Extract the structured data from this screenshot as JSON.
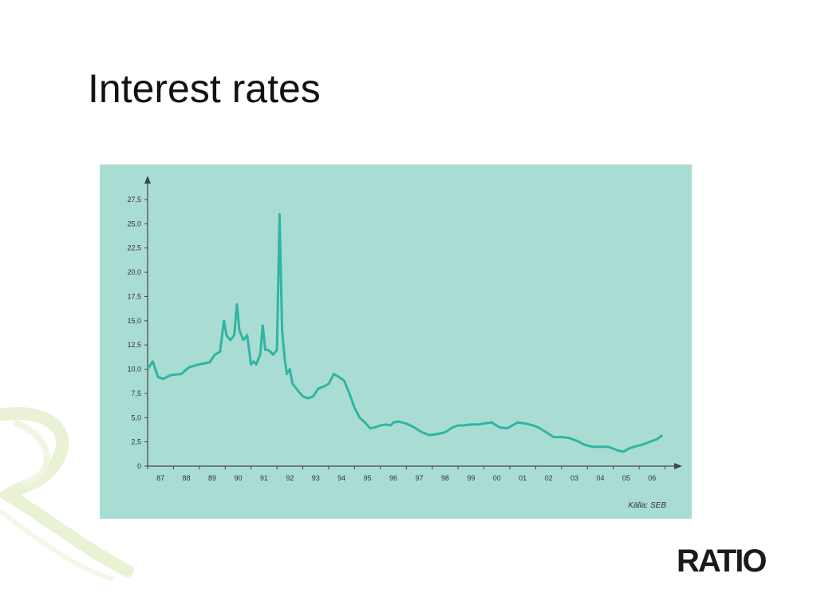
{
  "slide": {
    "title": "Interest rates",
    "logo_text": "RATIO",
    "decoration_icon": "swirl-r-icon"
  },
  "colors": {
    "chart_background": "#a9ddd4",
    "line": "#2fb5a3",
    "axis": "#444444",
    "decoration": "#eaf2d6"
  },
  "chart_data": {
    "type": "line",
    "title": "",
    "xlabel": "",
    "ylabel": "",
    "source": "Källa: SEB",
    "y_ticks": [
      "0",
      "2,5",
      "5,0",
      "7,5",
      "10,0",
      "12,5",
      "15,0",
      "17,5",
      "20,0",
      "22,5",
      "25,0",
      "27,5"
    ],
    "y_tick_values": [
      0,
      2.5,
      5,
      7.5,
      10,
      12.5,
      15,
      17.5,
      20,
      22.5,
      25,
      27.5
    ],
    "x_ticks": [
      "87",
      "88",
      "89",
      "90",
      "91",
      "92",
      "93",
      "94",
      "95",
      "96",
      "97",
      "98",
      "99",
      "00",
      "01",
      "02",
      "03",
      "04",
      "05",
      "06"
    ],
    "ylim": [
      0,
      27.5
    ],
    "xlim": [
      1987.0,
      2007.2
    ],
    "grid": false,
    "legend": "none",
    "series": [
      {
        "x": [
          1987.0,
          1987.2,
          1987.4,
          1987.6,
          1987.9,
          1988.3,
          1988.6,
          1989.0,
          1989.4,
          1989.6,
          1989.8,
          1989.95,
          1990.05,
          1990.2,
          1990.35,
          1990.45,
          1990.55,
          1990.7,
          1990.85,
          1991.0,
          1991.1,
          1991.2,
          1991.35,
          1991.45,
          1991.55,
          1991.65,
          1991.75,
          1991.85,
          1992.0,
          1992.1,
          1992.2,
          1992.3,
          1992.38,
          1992.5,
          1992.6,
          1992.75,
          1992.9,
          1993.0,
          1993.2,
          1993.4,
          1993.6,
          1993.8,
          1994.0,
          1994.2,
          1994.4,
          1994.6,
          1994.8,
          1995.0,
          1995.2,
          1995.4,
          1995.6,
          1995.8,
          1996.0,
          1996.2,
          1996.4,
          1996.5,
          1996.7,
          1997.0,
          1997.3,
          1997.6,
          1997.9,
          1998.2,
          1998.5,
          1998.8,
          1999.0,
          1999.2,
          1999.5,
          1999.8,
          2000.0,
          2000.3,
          2000.6,
          2000.9,
          2001.1,
          2001.3,
          2001.6,
          2001.9,
          2002.1,
          2002.4,
          2002.7,
          2003.0,
          2003.3,
          2003.6,
          2003.9,
          2004.2,
          2004.5,
          2004.8,
          2005.0,
          2005.2,
          2005.4,
          2005.6,
          2005.8,
          2006.1,
          2006.4,
          2006.7,
          2006.9
        ],
        "y": [
          10.0,
          10.8,
          9.2,
          9.0,
          9.4,
          9.5,
          10.2,
          10.5,
          10.7,
          11.5,
          11.8,
          15.0,
          13.5,
          13.0,
          13.5,
          16.7,
          14.0,
          13.0,
          13.5,
          10.5,
          10.8,
          10.5,
          11.5,
          14.5,
          12.0,
          12.0,
          11.8,
          11.5,
          12.0,
          26.0,
          14.0,
          11.0,
          9.5,
          10.0,
          8.5,
          8.0,
          7.5,
          7.2,
          7.0,
          7.2,
          8.0,
          8.2,
          8.5,
          9.5,
          9.2,
          8.8,
          7.5,
          6.0,
          5.0,
          4.5,
          3.9,
          4.0,
          4.2,
          4.3,
          4.2,
          4.5,
          4.6,
          4.4,
          4.0,
          3.5,
          3.2,
          3.3,
          3.5,
          4.0,
          4.2,
          4.2,
          4.3,
          4.3,
          4.4,
          4.5,
          4.0,
          3.9,
          4.2,
          4.5,
          4.4,
          4.2,
          4.0,
          3.5,
          3.0,
          3.0,
          2.9,
          2.6,
          2.2,
          2.0,
          2.0,
          2.0,
          1.8,
          1.6,
          1.5,
          1.8,
          2.0,
          2.2,
          2.5,
          2.8,
          3.2
        ]
      }
    ]
  }
}
